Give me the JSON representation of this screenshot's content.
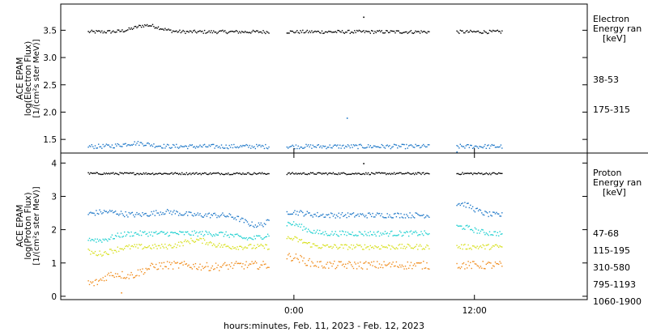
{
  "chart_data": [
    {
      "type": "scatter",
      "panel": "electron",
      "ylabel_lines": [
        "ACE EPAM",
        "log(Electron Flux)",
        "[1/(cm²s ster MeV)]"
      ],
      "ylim": [
        1.25,
        3.98
      ],
      "yticks": [
        1.5,
        2.0,
        2.5,
        3.0,
        3.5
      ],
      "ytick_labels": [
        "1.5",
        "2.0",
        "2.5",
        "3.0",
        "3.5"
      ],
      "legend_title": [
        "Electron",
        "Energy ran",
        "[keV]"
      ],
      "series": [
        {
          "name": "38-53",
          "color": "#000000",
          "base": 3.48,
          "noise": 0.03,
          "segments": [
            {
              "x0": -13.7,
              "x1": -1.7,
              "bumps": [
                [
                  -9.8,
                  0.12
                ]
              ]
            },
            {
              "x0": -0.5,
              "x1": 9.0,
              "bumps": []
            },
            {
              "x0": 10.8,
              "x1": 13.8,
              "bumps": []
            }
          ],
          "outliers": [
            [
              4.6,
              3.75
            ]
          ]
        },
        {
          "name": "175-315",
          "color": "#1f78c8",
          "base": 1.38,
          "noise": 0.04,
          "segments": [
            {
              "x0": -13.7,
              "x1": -1.7,
              "bumps": [
                [
                  -10.5,
                  0.06
                ]
              ]
            },
            {
              "x0": -0.5,
              "x1": 9.0,
              "bumps": []
            },
            {
              "x0": 10.8,
              "x1": 13.8,
              "bumps": []
            }
          ],
          "outliers": [
            [
              3.5,
              1.9
            ],
            [
              10.8,
              1.28
            ]
          ]
        }
      ]
    },
    {
      "type": "scatter",
      "panel": "proton",
      "ylabel_lines": [
        "ACE EPAM",
        "log(Proton Flux)",
        "[1/(cm²s ster MeV)]"
      ],
      "ylim": [
        -0.1,
        4.3
      ],
      "yticks": [
        0,
        1,
        2,
        3,
        4
      ],
      "ytick_labels": [
        "0",
        "1",
        "2",
        "3",
        "4"
      ],
      "legend_title": [
        "Proton",
        "Energy ran",
        "[keV]"
      ],
      "xlabel": "hours:minutes, Feb. 11, 2023 - Feb. 12, 2023",
      "xlim": [
        -15.5,
        19.5
      ],
      "xticks": [
        0,
        12
      ],
      "xtick_labels": [
        "0:00",
        "12:00"
      ],
      "series": [
        {
          "name": "47-68",
          "color": "#000000",
          "base": 3.7,
          "noise": 0.03,
          "segments": [
            {
              "x0": -13.7,
              "x1": -1.7,
              "bumps": []
            },
            {
              "x0": -0.5,
              "x1": 9.0,
              "bumps": []
            },
            {
              "x0": 10.8,
              "x1": 13.8,
              "bumps": []
            }
          ],
          "outliers": [
            [
              4.6,
              4.0
            ]
          ]
        },
        {
          "name": "115-195",
          "color": "#1f78c8",
          "base": 2.45,
          "noise": 0.08,
          "segments": [
            {
              "x0": -13.7,
              "x1": -1.7,
              "bumps": [
                [
                  -12.5,
                  0.1
                ],
                [
                  -8.5,
                  0.1
                ],
                [
                  -2.5,
                  -0.3
                ]
              ]
            },
            {
              "x0": -0.5,
              "x1": 9.0,
              "bumps": [
                [
                  -0.3,
                  0.1
                ]
              ]
            },
            {
              "x0": 10.8,
              "x1": 13.8,
              "bumps": [
                [
                  11.0,
                  0.35
                ]
              ]
            }
          ],
          "outliers": []
        },
        {
          "name": "310-580",
          "color": "#20d0d0",
          "base": 1.9,
          "noise": 0.08,
          "segments": [
            {
              "x0": -13.7,
              "x1": -1.7,
              "bumps": [
                [
                  -13.0,
                  -0.2
                ],
                [
                  -3.0,
                  -0.15
                ]
              ]
            },
            {
              "x0": -0.5,
              "x1": 9.0,
              "bumps": [
                [
                  -0.3,
                  0.3
                ]
              ]
            },
            {
              "x0": 10.8,
              "x1": 13.8,
              "bumps": [
                [
                  11.0,
                  0.2
                ]
              ]
            }
          ],
          "outliers": []
        },
        {
          "name": "795-1193",
          "color": "#d8e020",
          "base": 1.5,
          "noise": 0.08,
          "segments": [
            {
              "x0": -13.7,
              "x1": -1.7,
              "bumps": [
                [
                  -13.0,
                  -0.2
                ],
                [
                  -6.5,
                  0.2
                ]
              ]
            },
            {
              "x0": -0.5,
              "x1": 9.0,
              "bumps": [
                [
                  -0.3,
                  0.25
                ]
              ]
            },
            {
              "x0": 10.8,
              "x1": 13.8,
              "bumps": []
            }
          ],
          "outliers": []
        },
        {
          "name": "1060-1900",
          "color": "#f08c1c",
          "base": 0.95,
          "noise": 0.12,
          "segments": [
            {
              "x0": -13.7,
              "x1": -1.7,
              "bumps": [
                [
                  -13.5,
                  -0.55
                ],
                [
                  -11.0,
                  -0.3
                ],
                [
                  -5.5,
                  -0.05
                ]
              ]
            },
            {
              "x0": -0.5,
              "x1": 9.0,
              "bumps": [
                [
                  -0.3,
                  0.25
                ]
              ]
            },
            {
              "x0": 10.8,
              "x1": 13.8,
              "bumps": []
            }
          ],
          "outliers": [
            [
              -11.5,
              0.12
            ]
          ]
        }
      ]
    }
  ]
}
